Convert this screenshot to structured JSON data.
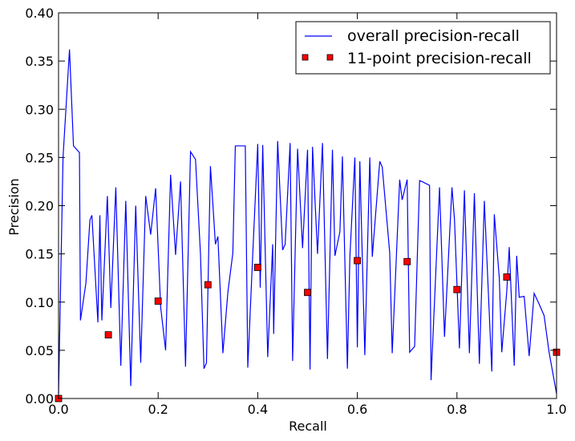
{
  "chart_data": {
    "type": "line",
    "title": "",
    "xlabel": "Recall",
    "ylabel": "Precision",
    "xlim": [
      0.0,
      1.0
    ],
    "ylim": [
      0.0,
      0.4
    ],
    "xticks": [
      0.0,
      0.2,
      0.4,
      0.6,
      0.8,
      1.0
    ],
    "xtick_labels": [
      "0.0",
      "0.2",
      "0.4",
      "0.6",
      "0.8",
      "1.0"
    ],
    "yticks": [
      0.0,
      0.05,
      0.1,
      0.15,
      0.2,
      0.25,
      0.3,
      0.35,
      0.4
    ],
    "ytick_labels": [
      "0.00",
      "0.05",
      "0.10",
      "0.15",
      "0.20",
      "0.25",
      "0.30",
      "0.35",
      "0.40"
    ],
    "grid": false,
    "legend_position": "top-right",
    "series": [
      {
        "name": "overall precision-recall",
        "style": "line",
        "color": "#0000ff",
        "x": [
          0.0,
          0.009,
          0.022,
          0.03,
          0.042,
          0.044,
          0.055,
          0.063,
          0.067,
          0.079,
          0.083,
          0.087,
          0.098,
          0.105,
          0.115,
          0.125,
          0.135,
          0.145,
          0.155,
          0.165,
          0.175,
          0.185,
          0.195,
          0.205,
          0.215,
          0.225,
          0.235,
          0.245,
          0.255,
          0.265,
          0.275,
          0.285,
          0.292,
          0.297,
          0.305,
          0.315,
          0.32,
          0.33,
          0.34,
          0.35,
          0.355,
          0.375,
          0.38,
          0.39,
          0.4,
          0.405,
          0.41,
          0.42,
          0.43,
          0.432,
          0.44,
          0.45,
          0.455,
          0.465,
          0.47,
          0.48,
          0.49,
          0.5,
          0.505,
          0.51,
          0.52,
          0.53,
          0.54,
          0.55,
          0.555,
          0.565,
          0.57,
          0.58,
          0.585,
          0.595,
          0.6,
          0.605,
          0.615,
          0.625,
          0.63,
          0.645,
          0.65,
          0.665,
          0.67,
          0.685,
          0.69,
          0.7,
          0.705,
          0.715,
          0.725,
          0.73,
          0.745,
          0.748,
          0.765,
          0.775,
          0.79,
          0.795,
          0.805,
          0.815,
          0.825,
          0.835,
          0.845,
          0.855,
          0.87,
          0.875,
          0.885,
          0.89,
          0.9,
          0.905,
          0.915,
          0.92,
          0.925,
          0.935,
          0.945,
          0.955,
          0.965,
          0.975,
          0.985,
          1.0
        ],
        "y": [
          0.005,
          0.25,
          0.362,
          0.262,
          0.255,
          0.081,
          0.12,
          0.185,
          0.19,
          0.079,
          0.19,
          0.081,
          0.21,
          0.094,
          0.219,
          0.034,
          0.205,
          0.013,
          0.2,
          0.037,
          0.21,
          0.17,
          0.218,
          0.095,
          0.05,
          0.232,
          0.149,
          0.225,
          0.033,
          0.256,
          0.248,
          0.15,
          0.031,
          0.037,
          0.241,
          0.16,
          0.168,
          0.047,
          0.11,
          0.151,
          0.262,
          0.262,
          0.032,
          0.15,
          0.264,
          0.115,
          0.263,
          0.043,
          0.16,
          0.067,
          0.267,
          0.154,
          0.16,
          0.265,
          0.039,
          0.259,
          0.156,
          0.258,
          0.03,
          0.261,
          0.15,
          0.265,
          0.041,
          0.258,
          0.148,
          0.173,
          0.251,
          0.031,
          0.147,
          0.25,
          0.053,
          0.246,
          0.045,
          0.25,
          0.147,
          0.246,
          0.24,
          0.151,
          0.047,
          0.227,
          0.206,
          0.227,
          0.048,
          0.054,
          0.226,
          0.225,
          0.221,
          0.019,
          0.219,
          0.064,
          0.219,
          0.186,
          0.052,
          0.216,
          0.047,
          0.213,
          0.036,
          0.205,
          0.028,
          0.191,
          0.125,
          0.048,
          0.111,
          0.157,
          0.034,
          0.148,
          0.105,
          0.106,
          0.044,
          0.109,
          0.098,
          0.086,
          0.048,
          0.005
        ]
      },
      {
        "name": "11-point precision-recall",
        "style": "markers",
        "marker": "square",
        "color": "#ff0000",
        "x": [
          0.0,
          0.1,
          0.2,
          0.3,
          0.4,
          0.5,
          0.6,
          0.7,
          0.8,
          0.9,
          1.0
        ],
        "y": [
          0.0,
          0.066,
          0.101,
          0.118,
          0.136,
          0.11,
          0.143,
          0.142,
          0.113,
          0.126,
          0.048
        ]
      }
    ]
  }
}
